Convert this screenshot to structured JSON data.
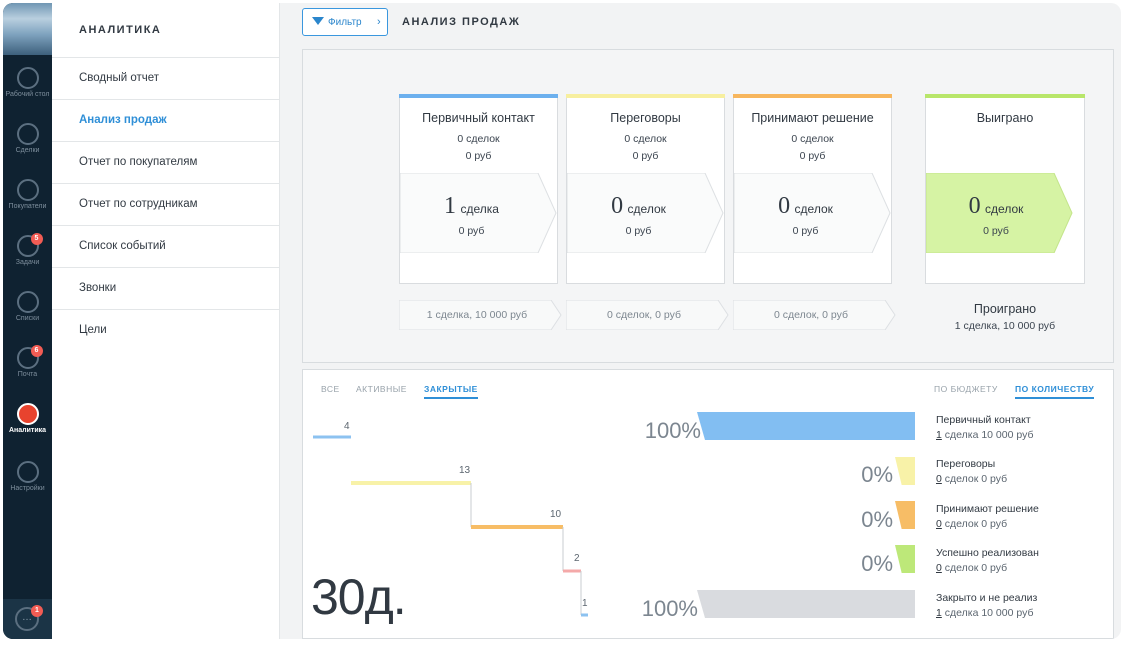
{
  "nav": {
    "items": [
      {
        "label": "Рабочий стол",
        "icon": "dashboard-icon"
      },
      {
        "label": "Сделки",
        "icon": "dollar-icon"
      },
      {
        "label": "Покупатели",
        "icon": "customers-icon"
      },
      {
        "label": "Задачи",
        "icon": "tasks-icon",
        "badge": "5"
      },
      {
        "label": "Списки",
        "icon": "lists-icon"
      },
      {
        "label": "Почта",
        "icon": "mail-icon",
        "badge": "6"
      },
      {
        "label": "Аналитика",
        "icon": "analytics-icon"
      },
      {
        "label": "Настройки",
        "icon": "settings-icon"
      }
    ],
    "chat_badge": "1"
  },
  "sidebar": {
    "title": "АНАЛИТИКА",
    "items": [
      {
        "label": "Сводный отчет"
      },
      {
        "label": "Анализ продаж"
      },
      {
        "label": "Отчет по покупателям"
      },
      {
        "label": "Отчет по сотрудникам"
      },
      {
        "label": "Список событий"
      },
      {
        "label": "Звонки"
      },
      {
        "label": "Цели"
      }
    ]
  },
  "header": {
    "filter_label": "Фильтр",
    "page_title": "АНАЛИЗ ПРОДАЖ"
  },
  "stages": [
    {
      "name": "Первичный контакт",
      "deals": "0 сделок",
      "rub": "0 руб",
      "big_num": "1",
      "big_word": "сделка",
      "big_rub": "0 руб",
      "summary": "1 сделка, 10 000 руб",
      "color": "#6cb0ee"
    },
    {
      "name": "Переговоры",
      "deals": "0 сделок",
      "rub": "0 руб",
      "big_num": "0",
      "big_word": "сделок",
      "big_rub": "0 руб",
      "summary": "0 сделок, 0 руб",
      "color": "#f7ef9f"
    },
    {
      "name": "Принимают решение",
      "deals": "0 сделок",
      "rub": "0 руб",
      "big_num": "0",
      "big_word": "сделок",
      "big_rub": "0 руб",
      "summary": "0 сделок, 0 руб",
      "color": "#f7b65d"
    },
    {
      "name": "Выиграно",
      "big_num": "0",
      "big_word": "сделок",
      "big_rub": "0 руб",
      "color": "#b8e66a"
    }
  ],
  "lost": {
    "title": "Проиграно",
    "value": "1 сделка, 10 000 руб"
  },
  "funnel": {
    "tabs": [
      "ВСЕ",
      "АКТИВНЫЕ",
      "ЗАКРЫТЫЕ"
    ],
    "modes": [
      "ПО БЮДЖЕТУ",
      "ПО КОЛИЧЕСТВУ"
    ],
    "days": "30д.",
    "rows": [
      {
        "label": "Первичный контакт",
        "count": "1",
        "rest": " сделка 10 000 руб",
        "pct": "100%",
        "num": "4",
        "share": 1.0,
        "color": "#82bef2"
      },
      {
        "label": "Переговоры",
        "count": "0",
        "rest": " сделок 0 руб",
        "pct": "0%",
        "num": "13",
        "share": 0.0,
        "color": "#f8f2a8"
      },
      {
        "label": "Принимают решение",
        "count": "0",
        "rest": " сделок 0 руб",
        "pct": "0%",
        "num": "10",
        "share": 0.0,
        "color": "#f7bd66"
      },
      {
        "label": "Успешно реализован",
        "count": "0",
        "rest": " сделок 0 руб",
        "pct": "0%",
        "num": "2",
        "share": 0.0,
        "color": "#bde879"
      },
      {
        "label": "Закрыто и не реализ",
        "count": "1",
        "rest": " сделка 10 000 руб",
        "pct": "100%",
        "num": "1",
        "share": 1.0,
        "color": "#d9dbdf"
      }
    ]
  }
}
